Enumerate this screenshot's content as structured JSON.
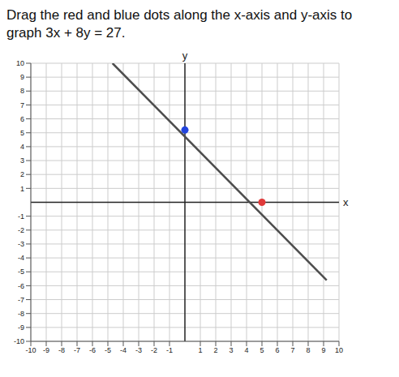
{
  "chart_data": {
    "type": "line",
    "title": "Drag the red and blue dots along the x-axis and y-axis to graph 3x + 8y = 27.",
    "x_label": "x",
    "y_label": "y",
    "xlim": [
      -10,
      10
    ],
    "ylim": [
      -10,
      10
    ],
    "xticks": [
      -10,
      -9,
      -8,
      -7,
      -6,
      -5,
      -4,
      -3,
      -2,
      -1,
      1,
      2,
      3,
      4,
      5,
      6,
      7,
      8,
      9,
      10
    ],
    "yticks": [
      -10,
      -9,
      -8,
      -7,
      -6,
      -5,
      -4,
      -3,
      -2,
      -1,
      1,
      2,
      3,
      4,
      5,
      6,
      7,
      8,
      9,
      10
    ],
    "grid": true,
    "series": [
      {
        "type": "line",
        "color": "#4d4d4d",
        "line_style": "solid",
        "x": [
          -4.7,
          9.2
        ],
        "values": [
          10,
          -5.6
        ]
      },
      {
        "type": "scatter",
        "marker": "circle",
        "colors": [
          "#2244dd",
          "#e03a3a"
        ],
        "x": [
          0,
          5
        ],
        "values": [
          5.2,
          0
        ]
      }
    ]
  }
}
